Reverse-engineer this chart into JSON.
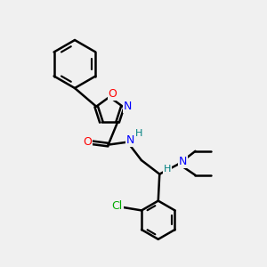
{
  "bg_color": "#f0f0f0",
  "bond_color": "#000000",
  "bond_lw": 1.8,
  "N_color": "#0000ff",
  "O_color": "#ff0000",
  "Cl_color": "#00aa00",
  "H_color": "#008080",
  "fig_size": [
    3.0,
    3.0
  ],
  "dpi": 100,
  "xlim": [
    0,
    10
  ],
  "ylim": [
    0,
    10
  ]
}
